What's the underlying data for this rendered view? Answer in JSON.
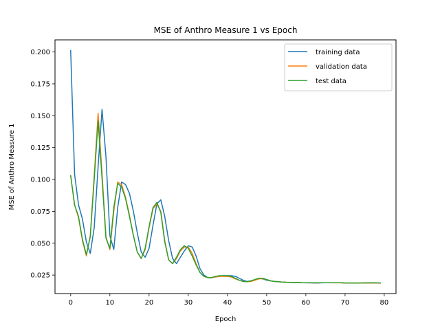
{
  "chart_data": {
    "type": "line",
    "title": "MSE of Anthro Measure 1 vs Epoch",
    "xlabel": "Epoch",
    "ylabel": "MSE of Anthro Measure 1",
    "xlim": [
      -4,
      83
    ],
    "ylim": [
      0.0105,
      0.2095
    ],
    "xticks": [
      0,
      10,
      20,
      30,
      40,
      50,
      60,
      70,
      80
    ],
    "yticks": [
      0.025,
      0.05,
      0.075,
      0.1,
      0.125,
      0.15,
      0.175,
      0.2
    ],
    "ytick_labels": [
      "0.025",
      "0.050",
      "0.075",
      "0.100",
      "0.125",
      "0.150",
      "0.175",
      "0.200"
    ],
    "grid": false,
    "legend_position": "top-right",
    "x": [
      0,
      1,
      2,
      3,
      4,
      5,
      6,
      7,
      8,
      9,
      10,
      11,
      12,
      13,
      14,
      15,
      16,
      17,
      18,
      19,
      20,
      21,
      22,
      23,
      24,
      25,
      26,
      27,
      28,
      29,
      30,
      31,
      32,
      33,
      34,
      35,
      36,
      37,
      38,
      39,
      40,
      41,
      42,
      43,
      44,
      45,
      46,
      47,
      48,
      49,
      50,
      51,
      52,
      53,
      54,
      55,
      56,
      57,
      58,
      59,
      60,
      61,
      62,
      63,
      64,
      65,
      66,
      67,
      68,
      69,
      70,
      71,
      72,
      73,
      74,
      75,
      76,
      77,
      78,
      79
    ],
    "series": [
      {
        "name": "training data",
        "color": "#1f77b4",
        "values": [
          0.201,
          0.104,
          0.08,
          0.069,
          0.051,
          0.042,
          0.062,
          0.11,
          0.155,
          0.118,
          0.056,
          0.045,
          0.078,
          0.098,
          0.096,
          0.089,
          0.075,
          0.058,
          0.043,
          0.039,
          0.046,
          0.064,
          0.081,
          0.084,
          0.071,
          0.052,
          0.038,
          0.034,
          0.039,
          0.044,
          0.048,
          0.047,
          0.04,
          0.03,
          0.025,
          0.023,
          0.023,
          0.024,
          0.024,
          0.0245,
          0.0245,
          0.0245,
          0.024,
          0.0225,
          0.021,
          0.02,
          0.0205,
          0.021,
          0.0225,
          0.022,
          0.021,
          0.0205,
          0.02,
          0.0198,
          0.0195,
          0.0193,
          0.0192,
          0.0192,
          0.0192,
          0.019,
          0.0189,
          0.0189,
          0.0188,
          0.0188,
          0.0189,
          0.019,
          0.019,
          0.019,
          0.019,
          0.019,
          0.0188,
          0.0187,
          0.0187,
          0.0187,
          0.0187,
          0.0188,
          0.0188,
          0.0188,
          0.0188,
          0.0187
        ]
      },
      {
        "name": "validation data",
        "color": "#ff7f0e",
        "values": [
          0.103,
          0.08,
          0.07,
          0.052,
          0.04,
          0.056,
          0.103,
          0.152,
          0.105,
          0.055,
          0.045,
          0.075,
          0.098,
          0.096,
          0.086,
          0.072,
          0.056,
          0.043,
          0.038,
          0.045,
          0.062,
          0.077,
          0.081,
          0.075,
          0.052,
          0.037,
          0.034,
          0.038,
          0.044,
          0.047,
          0.047,
          0.042,
          0.034,
          0.027,
          0.024,
          0.023,
          0.023,
          0.0235,
          0.024,
          0.024,
          0.024,
          0.0235,
          0.022,
          0.021,
          0.02,
          0.0198,
          0.02,
          0.021,
          0.022,
          0.0222,
          0.0215,
          0.0205,
          0.02,
          0.0198,
          0.0195,
          0.0193,
          0.0193,
          0.0192,
          0.0192,
          0.019,
          0.019,
          0.0189,
          0.0189,
          0.0189,
          0.019,
          0.019,
          0.019,
          0.0189,
          0.0189,
          0.0189,
          0.0188,
          0.0188,
          0.0188,
          0.0188,
          0.0188,
          0.0188,
          0.0188,
          0.0188,
          0.0188,
          0.0188
        ]
      },
      {
        "name": "test data",
        "color": "#2ca02c",
        "values": [
          0.103,
          0.08,
          0.071,
          0.053,
          0.041,
          0.055,
          0.1,
          0.146,
          0.101,
          0.054,
          0.046,
          0.078,
          0.097,
          0.094,
          0.085,
          0.071,
          0.056,
          0.043,
          0.038,
          0.046,
          0.063,
          0.078,
          0.082,
          0.074,
          0.051,
          0.037,
          0.034,
          0.039,
          0.045,
          0.048,
          0.046,
          0.04,
          0.033,
          0.027,
          0.024,
          0.023,
          0.023,
          0.024,
          0.0245,
          0.0245,
          0.0245,
          0.024,
          0.0225,
          0.021,
          0.02,
          0.0198,
          0.0205,
          0.0215,
          0.0225,
          0.0225,
          0.0215,
          0.0205,
          0.02,
          0.0198,
          0.0195,
          0.0193,
          0.0192,
          0.0192,
          0.0192,
          0.019,
          0.019,
          0.019,
          0.019,
          0.019,
          0.019,
          0.019,
          0.019,
          0.019,
          0.019,
          0.019,
          0.0188,
          0.0188,
          0.0188,
          0.0188,
          0.0188,
          0.0189,
          0.0189,
          0.0189,
          0.0189,
          0.0188
        ]
      }
    ]
  }
}
